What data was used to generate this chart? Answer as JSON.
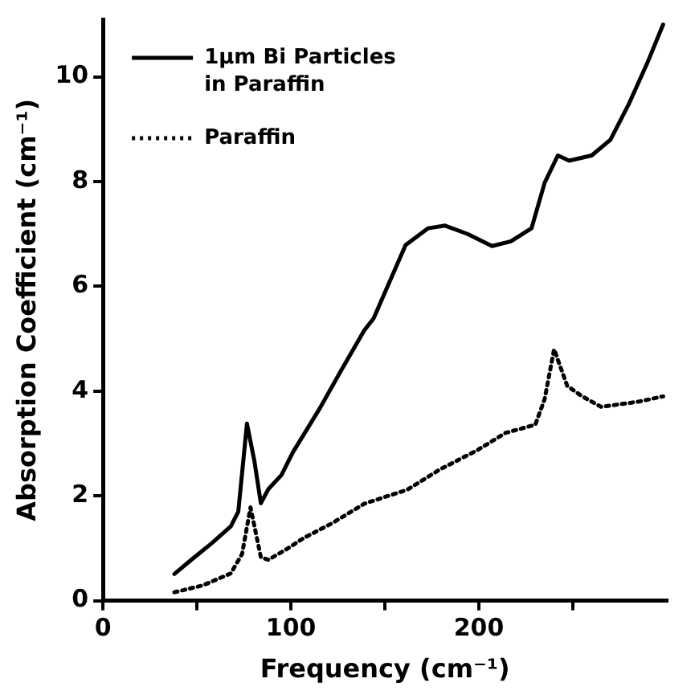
{
  "chart_data": {
    "type": "line",
    "xlabel": "Frequency (cm⁻¹)",
    "ylabel": "Absorption Coefficient (cm⁻¹)",
    "xlim": [
      0,
      300
    ],
    "xticks": [
      0,
      {
        "value": 50,
        "label": null
      },
      100,
      {
        "value": 150,
        "label": null
      },
      200,
      {
        "value": 250,
        "label": null
      }
    ],
    "ylim": [
      0,
      11.1
    ],
    "yticks": [
      0,
      2,
      4,
      6,
      8,
      10
    ],
    "grid": false,
    "legend": "top left",
    "marker": "none",
    "series": [
      {
        "name": "1μm Bi Particles in Paraffin",
        "color": "#000000",
        "line_style": "solid",
        "x": [
          38,
          47,
          58,
          68,
          72,
          76.6,
          80.5,
          84,
          88,
          95,
          101,
          115,
          126,
          139,
          144,
          161,
          173,
          182,
          194,
          207,
          217,
          228,
          235,
          242,
          248,
          260,
          270,
          280,
          290,
          298
        ],
        "values": [
          0.51,
          0.78,
          1.1,
          1.42,
          1.7,
          3.38,
          2.68,
          1.86,
          2.13,
          2.4,
          2.83,
          3.65,
          4.35,
          5.16,
          5.39,
          6.79,
          7.11,
          7.16,
          7.0,
          6.77,
          6.86,
          7.11,
          7.98,
          8.5,
          8.4,
          8.5,
          8.8,
          9.5,
          10.3,
          11.0
        ]
      },
      {
        "name": "Paraffin",
        "color": "#000000",
        "line_style": "dotted",
        "x": [
          38,
          53,
          68,
          74,
          78.5,
          84,
          88,
          98,
          107,
          121.5,
          139,
          162,
          179,
          199,
          214,
          230,
          235,
          240,
          247,
          255,
          265,
          275,
          285,
          298
        ],
        "values": [
          0.16,
          0.29,
          0.52,
          0.89,
          1.78,
          0.83,
          0.78,
          0.99,
          1.2,
          1.47,
          1.85,
          2.12,
          2.5,
          2.87,
          3.2,
          3.36,
          3.85,
          4.8,
          4.1,
          3.9,
          3.7,
          3.75,
          3.8,
          3.9
        ]
      }
    ]
  }
}
